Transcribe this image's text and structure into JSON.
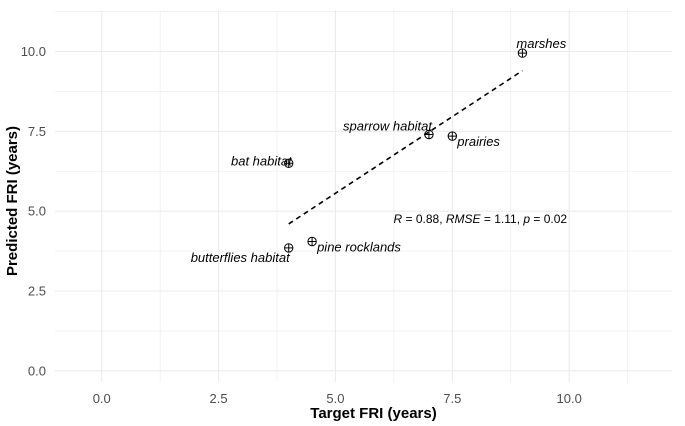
{
  "chart_data": {
    "type": "scatter",
    "xlabel": "Target FRI (years)",
    "ylabel": "Predicted FRI (years)",
    "xlim": [
      -1.0,
      12.2
    ],
    "ylim": [
      -0.35,
      11.3
    ],
    "x_ticks": [
      0.0,
      2.5,
      5.0,
      7.5,
      10.0
    ],
    "x_tick_labels": [
      "0.0",
      "2.5",
      "5.0",
      "7.5",
      "10.0"
    ],
    "y_ticks": [
      0.0,
      2.5,
      5.0,
      7.5,
      10.0
    ],
    "y_tick_labels": [
      "0.0",
      "2.5",
      "5.0",
      "7.5",
      "10.0"
    ],
    "grid": true,
    "points": [
      {
        "label": "marshes",
        "x": 9.0,
        "y": 9.95,
        "label_pos": "above"
      },
      {
        "label": "sparrow habitat",
        "x": 7.0,
        "y": 7.4,
        "label_pos": "above-left"
      },
      {
        "label": "prairies",
        "x": 7.5,
        "y": 7.35,
        "label_pos": "below-right"
      },
      {
        "label": "bat habitat",
        "x": 4.0,
        "y": 6.5,
        "label_pos": "left"
      },
      {
        "label": "pine rocklands",
        "x": 4.5,
        "y": 4.05,
        "label_pos": "below-right"
      },
      {
        "label": "butterflies habitat",
        "x": 4.0,
        "y": 3.85,
        "label_pos": "below-left"
      }
    ],
    "regression_line": {
      "x": [
        4.0,
        9.0
      ],
      "y": [
        4.6,
        9.4
      ],
      "style": "dashed"
    },
    "annotation": {
      "parts": [
        {
          "text": "R",
          "italic": true
        },
        {
          "text": " = 0.88, ",
          "italic": false
        },
        {
          "text": "RMSE",
          "italic": true
        },
        {
          "text": " = 1.11, ",
          "italic": false
        },
        {
          "text": "p",
          "italic": true
        },
        {
          "text": " = 0.02",
          "italic": false
        }
      ],
      "x": 7.5,
      "y": 4.75
    },
    "colors": {
      "background": "#ffffff",
      "grid": "#ebebeb",
      "points": "#000000",
      "line": "#000000",
      "tick_text": "#4d4d4d"
    }
  }
}
